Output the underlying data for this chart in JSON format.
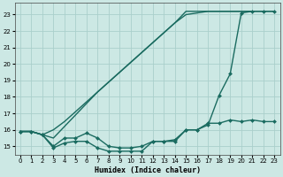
{
  "xlabel": "Humidex (Indice chaleur)",
  "bg_color": "#cce8e4",
  "grid_color": "#aacfcb",
  "line_color": "#1a6b60",
  "x_min": -0.5,
  "x_max": 23.5,
  "y_min": 14.5,
  "y_max": 23.7,
  "lines": [
    {
      "x": [
        0,
        1,
        2,
        3,
        4,
        5,
        6,
        7,
        8,
        9,
        10,
        11,
        12,
        13,
        14,
        15,
        16,
        17,
        18,
        19,
        20,
        21,
        22,
        23
      ],
      "y": [
        15.9,
        15.9,
        15.7,
        14.9,
        15.2,
        15.3,
        15.3,
        14.9,
        14.7,
        14.7,
        14.7,
        14.7,
        15.3,
        15.3,
        15.3,
        16.0,
        16.0,
        16.3,
        18.1,
        19.4,
        23.1,
        23.2,
        23.2,
        23.2
      ],
      "marker": "D",
      "ms": 2.0
    },
    {
      "x": [
        0,
        1,
        2,
        3,
        4,
        5,
        6,
        7,
        8,
        9,
        10,
        11,
        12,
        13,
        14,
        15,
        16,
        17,
        18,
        19,
        20,
        21,
        22,
        23
      ],
      "y": [
        15.9,
        15.9,
        15.7,
        15.0,
        15.5,
        15.5,
        15.8,
        15.5,
        15.0,
        14.9,
        14.9,
        15.0,
        15.3,
        15.3,
        15.4,
        16.0,
        16.0,
        16.4,
        16.4,
        16.6,
        16.5,
        16.6,
        16.5,
        16.5
      ],
      "marker": "D",
      "ms": 2.0
    },
    {
      "x": [
        0,
        1,
        2,
        3,
        4,
        5,
        6,
        7,
        8,
        9,
        10,
        11,
        12,
        13,
        14,
        15,
        16,
        17,
        18,
        19,
        20,
        21
      ],
      "y": [
        15.9,
        15.9,
        15.7,
        16.0,
        16.5,
        17.1,
        17.7,
        18.3,
        18.9,
        19.5,
        20.1,
        20.7,
        21.3,
        21.9,
        22.5,
        23.0,
        23.1,
        23.2,
        23.2,
        23.2,
        23.2,
        23.2
      ],
      "marker": null,
      "ms": 0
    },
    {
      "x": [
        0,
        1,
        2,
        3,
        4,
        5,
        6,
        7,
        8,
        9,
        10,
        11,
        12,
        13,
        14,
        15,
        16,
        17,
        18,
        19,
        20,
        21,
        22,
        23
      ],
      "y": [
        15.9,
        15.9,
        15.7,
        15.5,
        16.2,
        16.9,
        17.6,
        18.3,
        18.9,
        19.5,
        20.1,
        20.7,
        21.3,
        21.9,
        22.5,
        23.2,
        23.2,
        23.2,
        23.2,
        23.2,
        23.2,
        23.2,
        23.2,
        23.2
      ],
      "marker": null,
      "ms": 0
    }
  ],
  "x_ticks": [
    0,
    1,
    2,
    3,
    4,
    5,
    6,
    7,
    8,
    9,
    10,
    11,
    12,
    13,
    14,
    15,
    16,
    17,
    18,
    19,
    20,
    21,
    22,
    23
  ],
  "y_ticks": [
    15,
    16,
    17,
    18,
    19,
    20,
    21,
    22,
    23
  ],
  "linewidth": 1.0
}
